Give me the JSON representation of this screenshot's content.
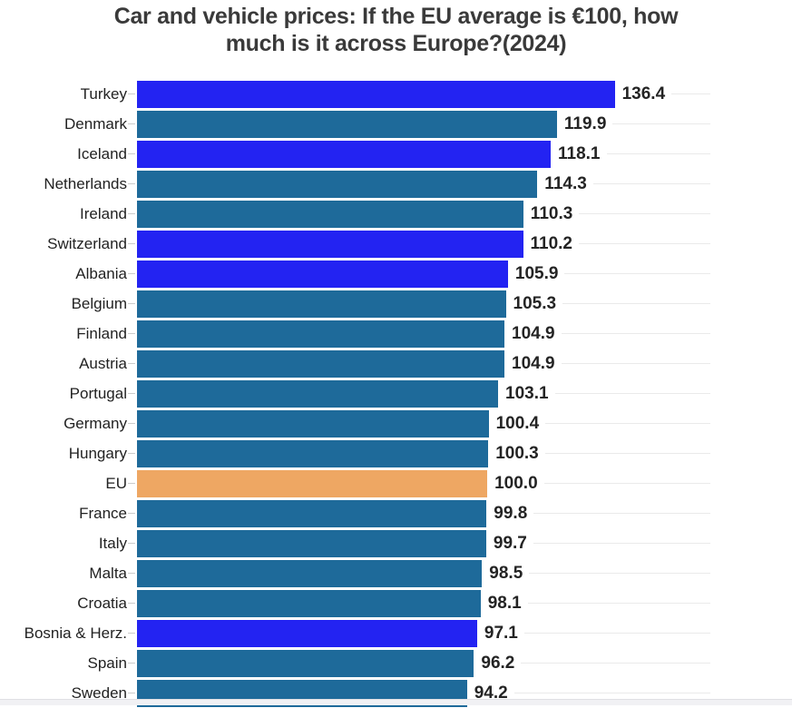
{
  "title": "Car and vehicle prices: If the EU average is €100, how much is it across Europe?(2024)",
  "title_lines": [
    "Car and vehicle prices: If the EU average is €100, how",
    "much is it across Europe?(2024)"
  ],
  "colors": {
    "non_eu": "#2323f2",
    "member": "#1e6a9a",
    "eu_avg": "#eea763",
    "grid": "#eaeaea",
    "title_text": "#3a3a3a",
    "value_text": "#242424",
    "category_text": "#222222"
  },
  "chart_data": {
    "type": "bar",
    "orientation": "horizontal",
    "title": "Car and vehicle prices: If the EU average is €100, how much is it across Europe?(2024)",
    "categories": [
      "Turkey",
      "Denmark",
      "Iceland",
      "Netherlands",
      "Ireland",
      "Switzerland",
      "Albania",
      "Belgium",
      "Finland",
      "Austria",
      "Portugal",
      "Germany",
      "Hungary",
      "EU",
      "France",
      "Italy",
      "Malta",
      "Croatia",
      "Bosnia & Herz.",
      "Spain",
      "Sweden"
    ],
    "values": [
      136.4,
      119.9,
      118.1,
      114.3,
      110.3,
      110.2,
      105.9,
      105.3,
      104.9,
      104.9,
      103.1,
      100.4,
      100.3,
      100.0,
      99.8,
      99.7,
      98.5,
      98.1,
      97.1,
      96.2,
      94.2
    ],
    "bar_color_roles": [
      "non_eu",
      "member",
      "non_eu",
      "member",
      "member",
      "non_eu",
      "non_eu",
      "member",
      "member",
      "member",
      "member",
      "member",
      "member",
      "eu_avg",
      "member",
      "member",
      "member",
      "member",
      "non_eu",
      "member",
      "member"
    ],
    "data_labels": true,
    "xlabel": "",
    "ylabel": "",
    "xlim": [
      0,
      163.7
    ],
    "grid": true,
    "legend": false
  }
}
